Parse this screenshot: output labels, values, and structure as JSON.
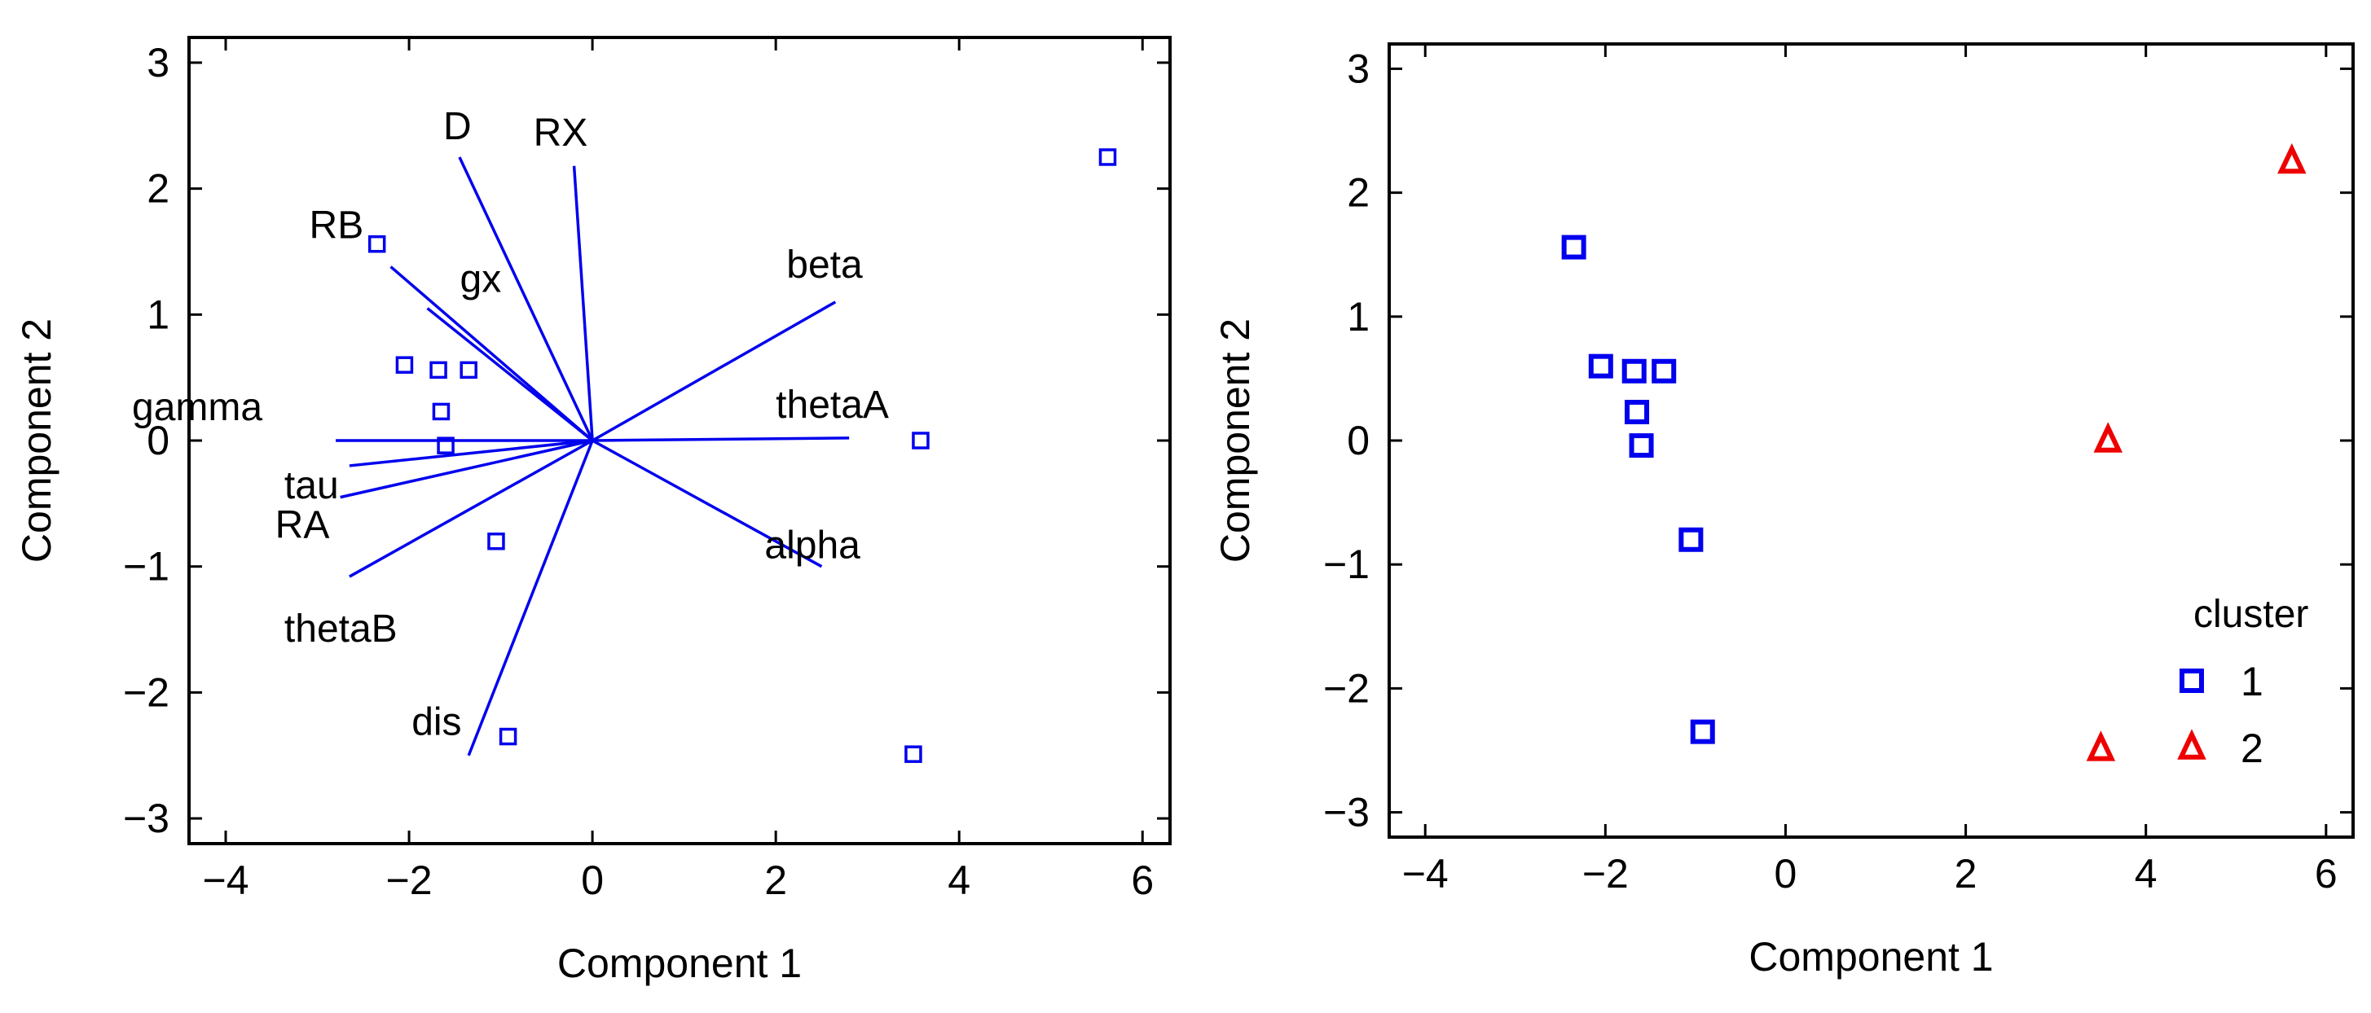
{
  "colors": {
    "cluster_1": "#0000ee",
    "cluster_2": "#ee0000",
    "loading_vector": "#0000ee",
    "axis": "#000000"
  },
  "chart_data": [
    {
      "type": "scatter",
      "subtype": "biplot",
      "xlabel": "Component 1",
      "ylabel": "Component 2",
      "xlim": [
        -4.4,
        6.3
      ],
      "ylim": [
        -3.2,
        3.2
      ],
      "xticks": [
        -4,
        -2,
        0,
        2,
        4,
        6
      ],
      "yticks": [
        -3,
        -2,
        -1,
        0,
        1,
        2,
        3
      ],
      "grid": false,
      "points": {
        "marker": "open-square",
        "color": "#0000ee",
        "x": [
          5.62,
          -2.35,
          -2.05,
          -1.68,
          -1.35,
          -1.65,
          -1.6,
          -1.05,
          3.58,
          -0.92,
          3.5
        ],
        "y": [
          2.25,
          1.56,
          0.6,
          0.56,
          0.56,
          0.23,
          -0.04,
          -0.8,
          0.0,
          -2.35,
          -2.49
        ]
      },
      "vectors": [
        {
          "label": "D",
          "x": -1.45,
          "y": 2.25
        },
        {
          "label": "RX",
          "x": -0.2,
          "y": 2.18
        },
        {
          "label": "RB",
          "x": -2.2,
          "y": 1.38
        },
        {
          "label": "gx",
          "x": -1.8,
          "y": 1.05
        },
        {
          "label": "beta",
          "x": 2.65,
          "y": 1.1
        },
        {
          "label": "gamma",
          "x": -2.8,
          "y": 0.0
        },
        {
          "label": "thetaA",
          "x": 2.8,
          "y": 0.02
        },
        {
          "label": "tau",
          "x": -2.65,
          "y": -0.2
        },
        {
          "label": "RA",
          "x": -2.75,
          "y": -0.45
        },
        {
          "label": "alpha",
          "x": 2.5,
          "y": -1.0
        },
        {
          "label": "thetaB",
          "x": -2.65,
          "y": -1.08
        },
        {
          "label": "dis",
          "x": -1.35,
          "y": -2.5
        }
      ]
    },
    {
      "type": "scatter",
      "xlabel": "Component 1",
      "ylabel": "Component 2",
      "xlim": [
        -4.4,
        6.3
      ],
      "ylim": [
        -3.2,
        3.2
      ],
      "xticks": [
        -4,
        -2,
        0,
        2,
        4,
        6
      ],
      "yticks": [
        -3,
        -2,
        -1,
        0,
        1,
        2,
        3
      ],
      "grid": false,
      "legend": {
        "title": "cluster",
        "placement": "bottom-right",
        "entries": [
          {
            "label": "1",
            "marker": "square",
            "color": "#0000ee"
          },
          {
            "label": "2",
            "marker": "triangle",
            "color": "#ee0000"
          }
        ]
      },
      "series": [
        {
          "name": "1",
          "marker": "square",
          "color": "#0000ee",
          "x": [
            -2.35,
            -2.05,
            -1.68,
            -1.35,
            -1.65,
            -1.6,
            -1.05,
            -0.92
          ],
          "y": [
            1.56,
            0.6,
            0.56,
            0.56,
            0.23,
            -0.04,
            -0.8,
            -2.35
          ]
        },
        {
          "name": "2",
          "marker": "triangle",
          "color": "#ee0000",
          "x": [
            5.62,
            3.58,
            3.5
          ],
          "y": [
            2.25,
            0.0,
            -2.49
          ]
        }
      ]
    }
  ]
}
